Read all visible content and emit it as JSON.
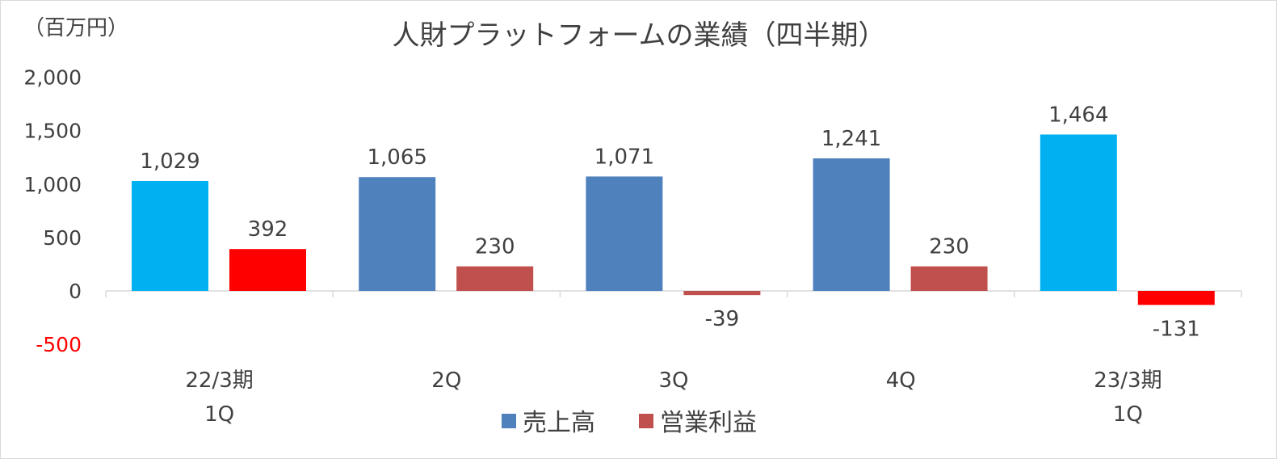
{
  "chart_data": {
    "type": "bar",
    "title": "人財プラットフォームの業績（四半期）",
    "unit_label": "（百万円）",
    "ylim": [
      -500,
      2000
    ],
    "yticks": [
      {
        "value": 2000,
        "label": "2,000",
        "color": "#404040"
      },
      {
        "value": 1500,
        "label": "1,500",
        "color": "#404040"
      },
      {
        "value": 1000,
        "label": "1,000",
        "color": "#404040"
      },
      {
        "value": 500,
        "label": "500",
        "color": "#404040"
      },
      {
        "value": 0,
        "label": "0",
        "color": "#404040"
      },
      {
        "value": -500,
        "label": "-500",
        "color": "#ff0000"
      }
    ],
    "categories": [
      [
        "22/3期",
        "1Q"
      ],
      [
        "2Q"
      ],
      [
        "3Q"
      ],
      [
        "4Q"
      ],
      [
        "23/3期",
        "1Q"
      ]
    ],
    "series": [
      {
        "name": "売上高",
        "legend_color": "#4f81bd",
        "values": [
          1029,
          1065,
          1071,
          1241,
          1464
        ],
        "labels": [
          "1,029",
          "1,065",
          "1,071",
          "1,241",
          "1,464"
        ],
        "colors": [
          "#00b0f0",
          "#4f81bd",
          "#4f81bd",
          "#4f81bd",
          "#00b0f0"
        ]
      },
      {
        "name": "営業利益",
        "legend_color": "#c0504d",
        "values": [
          392,
          230,
          -39,
          230,
          -131
        ],
        "labels": [
          "392",
          "230",
          "-39",
          "230",
          "-131"
        ],
        "colors": [
          "#ff0000",
          "#c0504d",
          "#c0504d",
          "#c0504d",
          "#ff0000"
        ]
      }
    ],
    "grid": false,
    "legend_position": "bottom"
  }
}
